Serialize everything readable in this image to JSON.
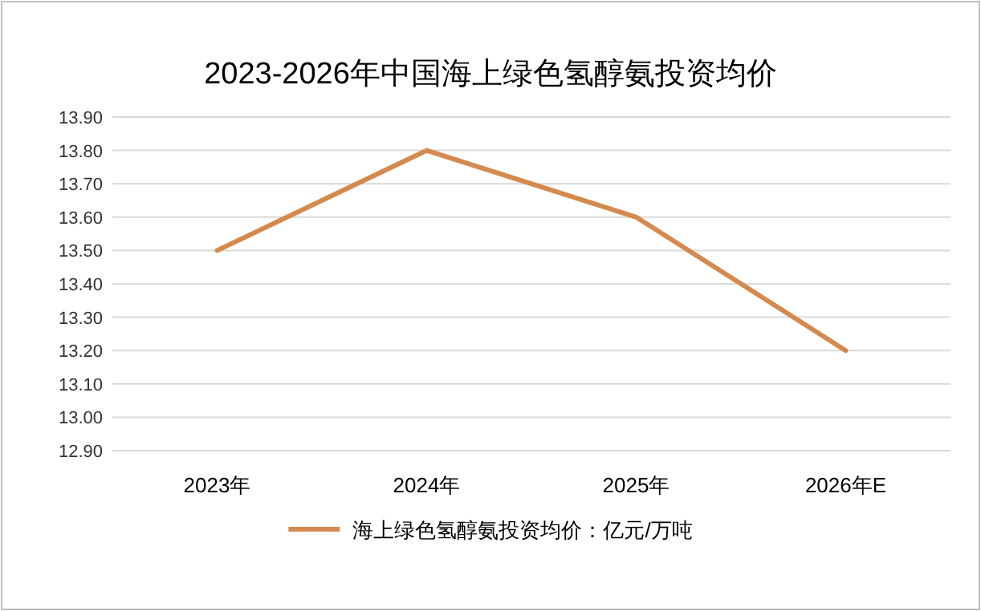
{
  "chart_data": {
    "type": "line",
    "title": "2023-2026年中国海上绿色氢醇氨投资均价",
    "categories": [
      "2023年",
      "2024年",
      "2025年",
      "2026年E"
    ],
    "series": [
      {
        "name": "海上绿色氢醇氨投资均价：亿元/万吨",
        "color": "#d48a4e",
        "values": [
          13.5,
          13.8,
          13.6,
          13.2
        ]
      }
    ],
    "ylim": [
      12.9,
      13.9
    ],
    "yticks": [
      {
        "value": 12.9,
        "label": "12.90"
      },
      {
        "value": 13.0,
        "label": "13.00"
      },
      {
        "value": 13.1,
        "label": "13.10"
      },
      {
        "value": 13.2,
        "label": "13.20"
      },
      {
        "value": 13.3,
        "label": "13.30"
      },
      {
        "value": 13.4,
        "label": "13.40"
      },
      {
        "value": 13.5,
        "label": "13.50"
      },
      {
        "value": 13.6,
        "label": "13.60"
      },
      {
        "value": 13.7,
        "label": "13.70"
      },
      {
        "value": 13.8,
        "label": "13.80"
      },
      {
        "value": 13.9,
        "label": "13.90"
      }
    ],
    "grid": "y",
    "legend": "bottom",
    "marker": "none",
    "line_style": "solid"
  }
}
